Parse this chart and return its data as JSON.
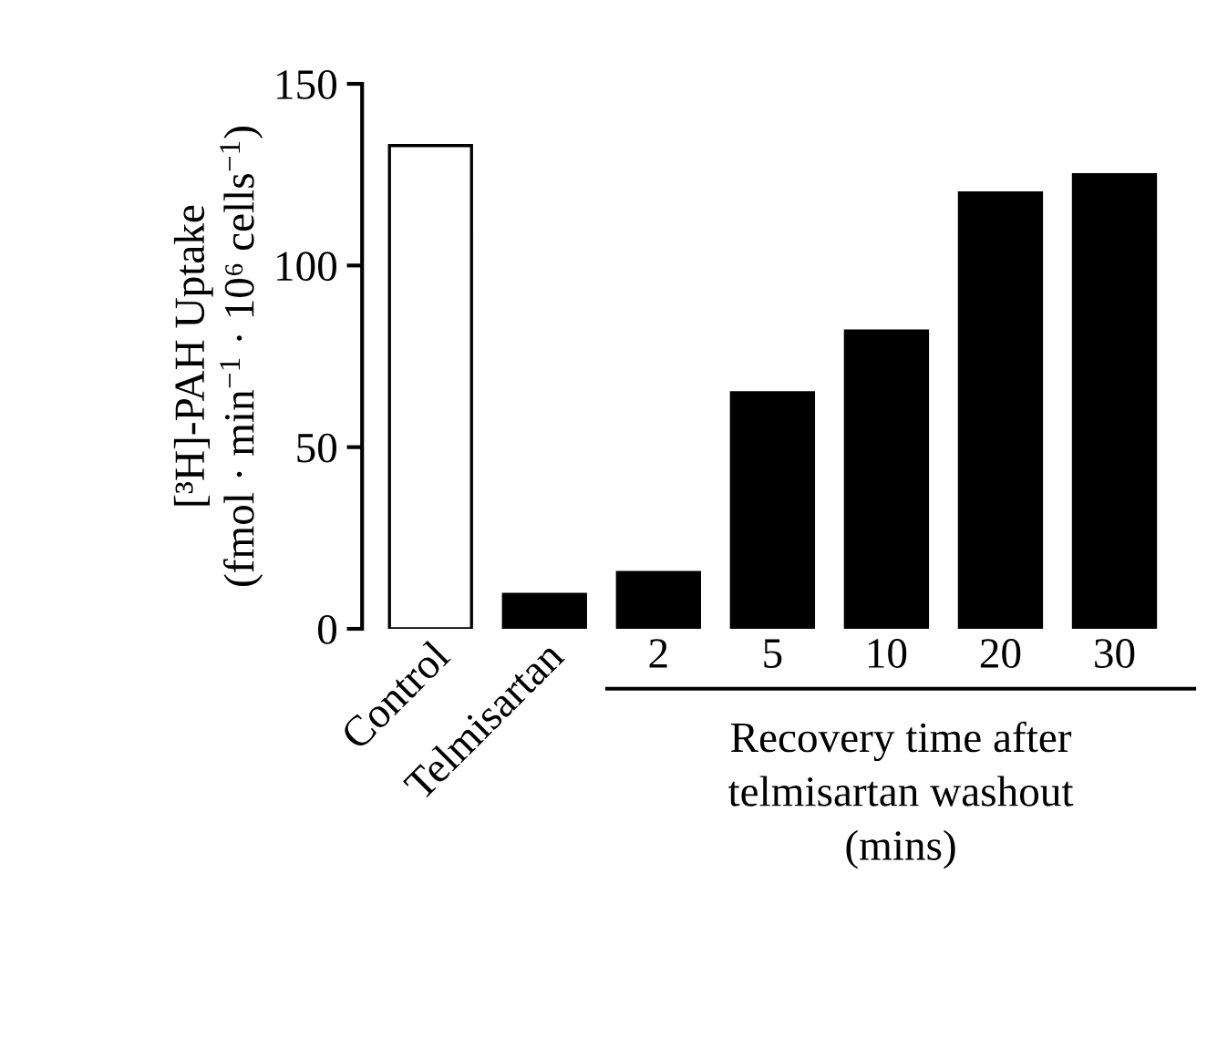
{
  "chart_data": {
    "type": "bar",
    "ylabel": "[³H]-PAH Uptake\n(fmol · min$^{−1}$ · 10⁶ cells$^{−1}$)",
    "xlabel": "Recovery time after\ntelmisartan washout\n(mins)",
    "categories": [
      "Control",
      "Telmisartan",
      "2",
      "5",
      "10",
      "20",
      "30"
    ],
    "values": [
      133,
      9.5,
      15.5,
      65,
      82,
      120,
      125
    ],
    "colors": [
      "#ffffff",
      "#000000",
      "#000000",
      "#000000",
      "#000000",
      "#000000",
      "#000000"
    ],
    "ylim": [
      0,
      150
    ],
    "yticks": [
      0,
      50,
      100,
      150
    ],
    "grid": false,
    "legend": false
  }
}
